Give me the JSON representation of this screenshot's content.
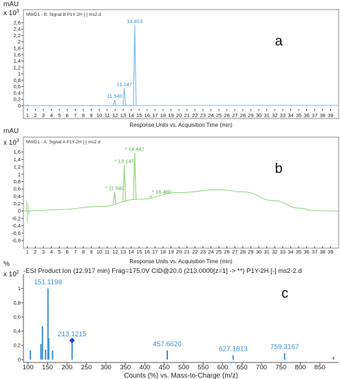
{
  "chart_data": [
    {
      "type": "line",
      "panel_letter": "a",
      "title": "MWD1 - B: Signal B P1Y-2H [-] ms2.d",
      "y_unit": "mAU",
      "y_multiplier_base": "x 10",
      "y_multiplier_exp": "3",
      "xlabel": "Response Units vs. Acquisition Time (min)",
      "xlim": [
        0.5,
        40
      ],
      "ylim": [
        -0.1,
        2.75
      ],
      "x_ticks": [
        1,
        2,
        3,
        4,
        5,
        6,
        7,
        8,
        9,
        10,
        11,
        12,
        13,
        14,
        15,
        16,
        17,
        18,
        19,
        20,
        21,
        22,
        23,
        24,
        25,
        26,
        27,
        28,
        29,
        30,
        31,
        32,
        33,
        34,
        35,
        36,
        37,
        38,
        39
      ],
      "y_ticks": [
        0,
        0.2,
        0.4,
        0.6,
        0.8,
        1,
        1.2,
        1.4,
        1.6,
        1.8,
        2,
        2.2,
        2.4,
        2.6
      ],
      "y_tick_labels": [
        "0",
        "0,2",
        "0,4",
        "0,6",
        "0,8",
        "1",
        "1,2",
        "1,4",
        "1,6",
        "1,8",
        "2",
        "2,2",
        "2,4",
        "2,6"
      ],
      "line_color": "#7db8f0",
      "label_color": "#3b8fd8",
      "baseline": [
        [
          0.5,
          0
        ],
        [
          1,
          0
        ],
        [
          1.05,
          0.03
        ],
        [
          1.1,
          -0.02
        ],
        [
          1.2,
          0
        ],
        [
          11,
          0
        ],
        [
          30,
          0.01
        ],
        [
          40,
          0.01
        ]
      ],
      "peaks": [
        {
          "label": "11.940",
          "x": 11.94,
          "height": 0.18
        },
        {
          "label": "13.147",
          "x": 13.147,
          "height": 0.55
        },
        {
          "label": "14.453",
          "x": 14.453,
          "height": 2.52
        }
      ]
    },
    {
      "type": "line",
      "panel_letter": "b",
      "title": "MWD1 - A: Signal A P1Y-2H [-] ms2.d",
      "y_unit": "mAU",
      "y_multiplier_base": "x 10",
      "y_multiplier_exp": "3",
      "xlabel": "Response Units vs. Acquisition Time (min)",
      "xlim": [
        0.5,
        40
      ],
      "ylim": [
        -0.95,
        1.8
      ],
      "x_ticks": [
        1,
        2,
        3,
        4,
        5,
        6,
        7,
        8,
        9,
        10,
        11,
        12,
        13,
        14,
        15,
        16,
        17,
        18,
        19,
        20,
        21,
        22,
        23,
        24,
        25,
        26,
        27,
        28,
        29,
        30,
        31,
        32,
        33,
        34,
        35,
        36,
        37,
        38,
        39
      ],
      "y_ticks": [
        -0.8,
        -0.6,
        -0.4,
        -0.2,
        0,
        0.2,
        0.4,
        0.6,
        0.8,
        1,
        1.2,
        1.4,
        1.6
      ],
      "y_tick_labels": [
        "-0,8",
        "-0,6",
        "-0,4",
        "-0,2",
        "0",
        "0,2",
        "0,4",
        "0,6",
        "0,8",
        "1",
        "1,2",
        "1,4",
        "1,6"
      ],
      "line_color": "#8ed27a",
      "label_color": "#49b43c",
      "drift": [
        [
          0.5,
          0
        ],
        [
          1.3,
          0
        ],
        [
          2,
          0.01
        ],
        [
          5,
          0.04
        ],
        [
          10,
          0.12
        ],
        [
          15,
          0.32
        ],
        [
          20,
          0.5
        ],
        [
          25,
          0.58
        ],
        [
          28,
          0.52
        ],
        [
          32,
          0.28
        ],
        [
          35,
          0.08
        ],
        [
          37,
          0.01
        ],
        [
          40,
          0
        ]
      ],
      "spikes": [
        [
          0.9,
          0.28
        ],
        [
          1.0,
          -0.32
        ],
        [
          1.08,
          0.2
        ],
        [
          1.15,
          -0.1
        ]
      ],
      "peaks": [
        {
          "label": "* 11.940",
          "x": 11.94,
          "height": 0.32
        },
        {
          "label": "* 13.147",
          "x": 13.147,
          "height": 1.0
        },
        {
          "label": "* 14.447",
          "x": 14.447,
          "height": 1.28
        },
        {
          "label": "* 16.460",
          "x": 16.46,
          "height": 0.04
        }
      ]
    },
    {
      "type": "bar",
      "panel_letter": "c",
      "title": "-ESI Product Ion (12.917 min) Frag=175.0V CID@20.0 (213.0000[z=1] -> **) P1Y-2H [-] ms2-2.d",
      "y_unit": "%",
      "y_multiplier_base": "x 10",
      "y_multiplier_exp": "2",
      "xlabel": "Counts (%) vs. Mass-to-Charge (m/z)",
      "xlim": [
        88,
        898
      ],
      "ylim": [
        -0.04,
        1.2
      ],
      "x_ticks": [
        100,
        150,
        200,
        250,
        300,
        350,
        400,
        450,
        500,
        550,
        600,
        650,
        700,
        750,
        800,
        850
      ],
      "y_ticks": [
        0,
        0.2,
        0.4,
        0.6,
        0.8,
        1
      ],
      "y_tick_labels": [
        "0",
        "0,2",
        "0,4",
        "0,6",
        "0,8",
        "1"
      ],
      "bar_color": "#3b8fd8",
      "label_color": "#3b8fd8",
      "precursor_marker_color": "#1f3fd0",
      "peaks": [
        {
          "mz": 106,
          "height": 0.13
        },
        {
          "mz": 133,
          "height": 0.22
        },
        {
          "mz": 137,
          "height": 0.47
        },
        {
          "mz": 145,
          "height": 0.14
        },
        {
          "mz": 151.1198,
          "height": 1.0,
          "label": "151.1198"
        },
        {
          "mz": 153,
          "height": 0.3
        },
        {
          "mz": 163,
          "height": 0.13
        },
        {
          "mz": 213.1215,
          "height": 0.27,
          "label": "213.1215",
          "precursor": true
        },
        {
          "mz": 457.662,
          "height": 0.13,
          "label": "457.6620"
        },
        {
          "mz": 627.1813,
          "height": 0.06,
          "label": "627.1813"
        },
        {
          "mz": 759.3167,
          "height": 0.09,
          "label": "759.3167"
        },
        {
          "mz": 885,
          "height": 0.04
        }
      ]
    }
  ]
}
